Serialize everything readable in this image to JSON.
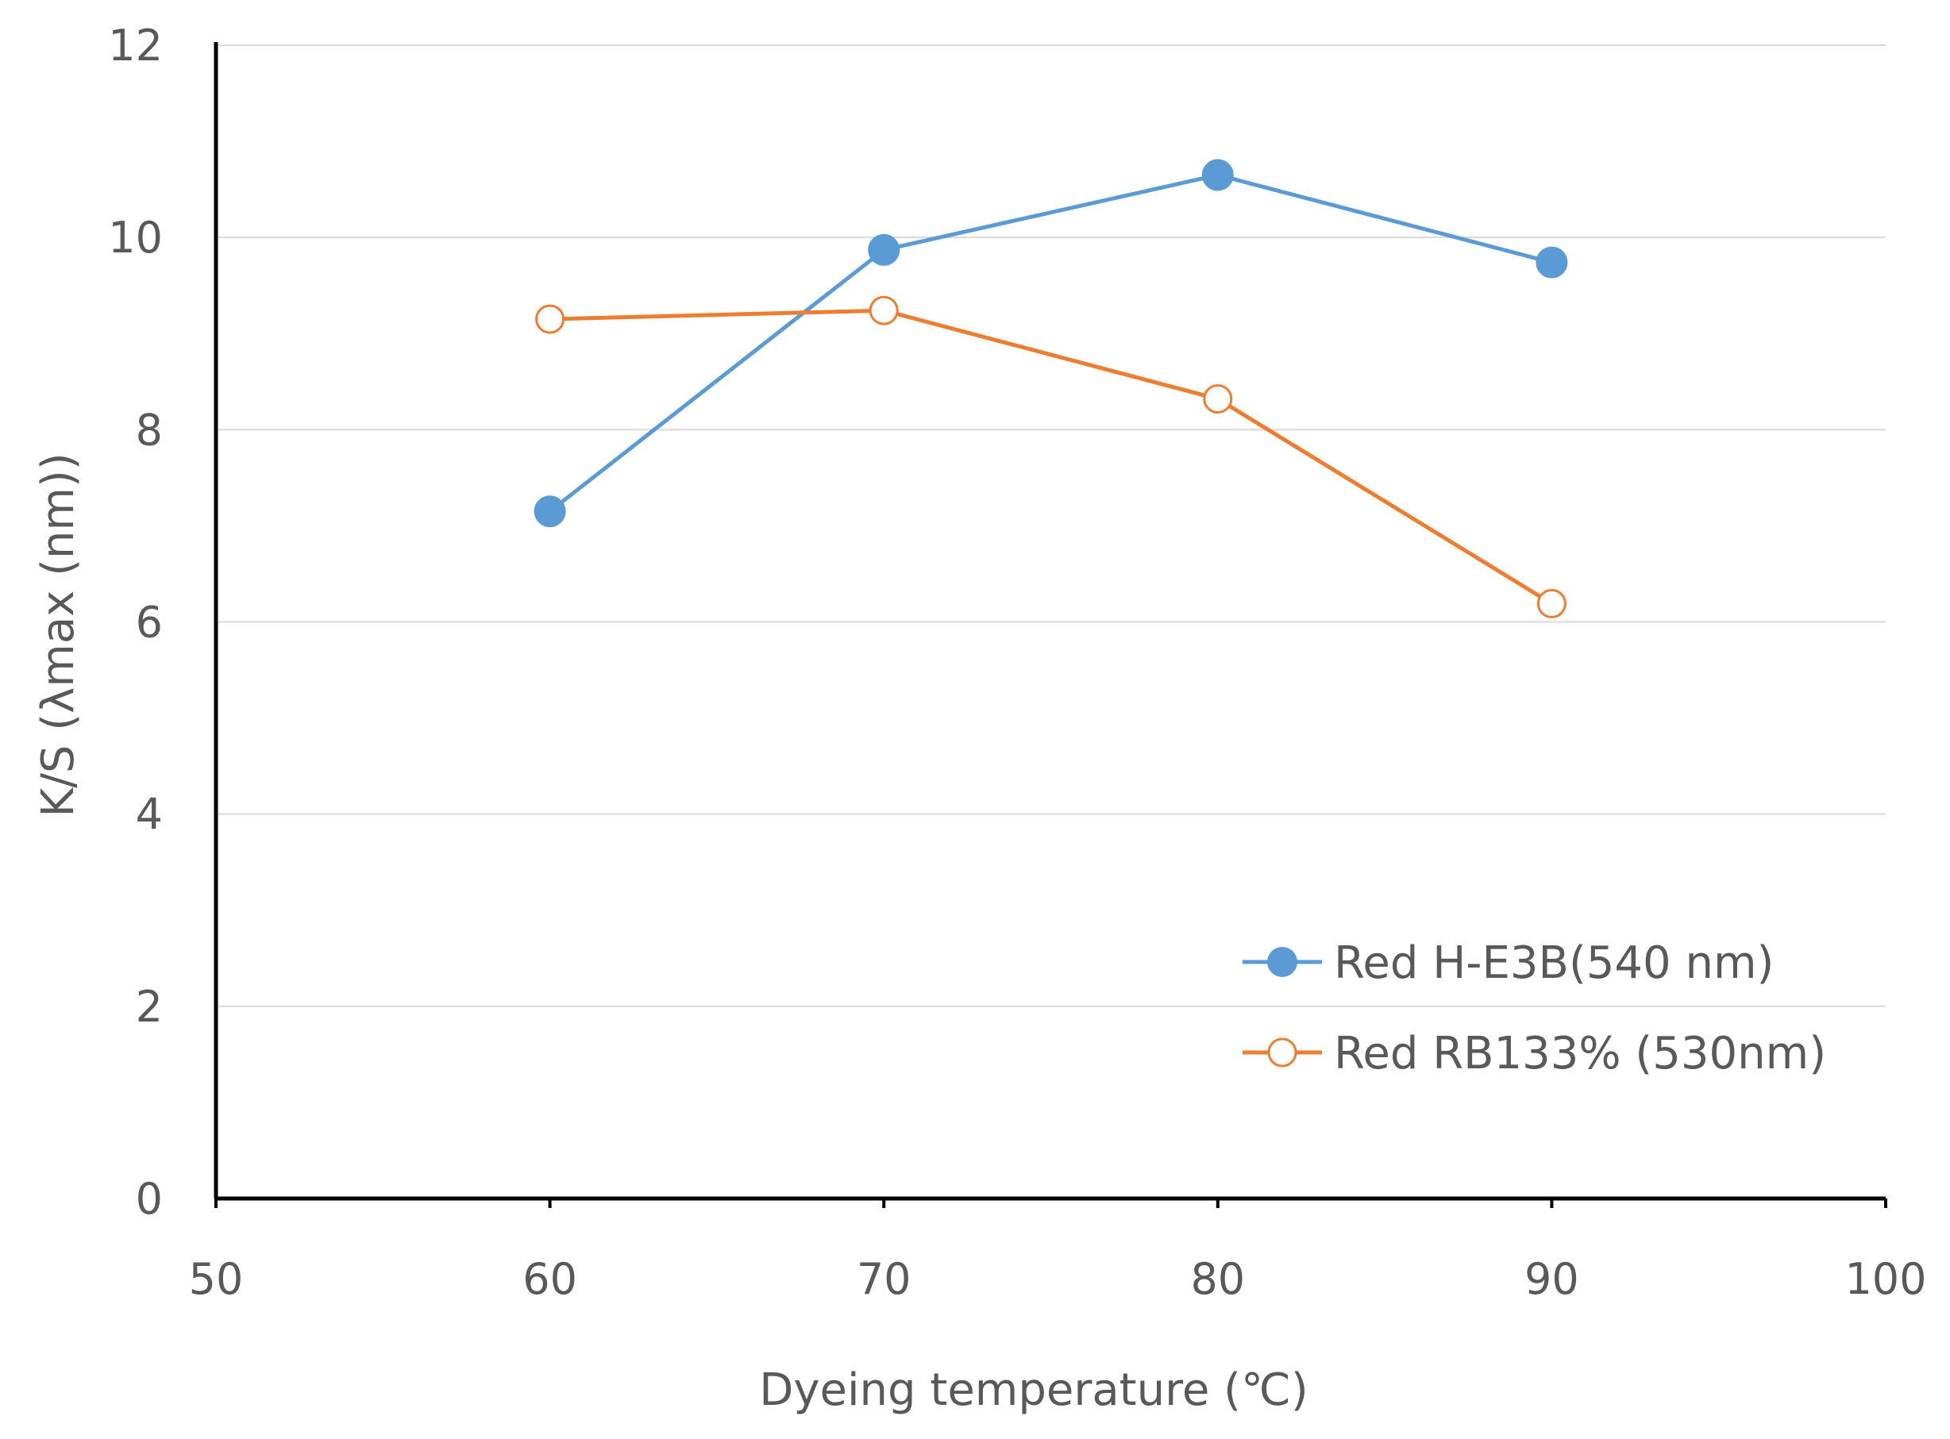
{
  "chart_data": {
    "type": "line",
    "title": "",
    "xlabel": "Dyeing temperature (℃)",
    "ylabel": "K/S (λmax (nm))",
    "xlim": [
      50,
      100
    ],
    "ylim": [
      0,
      12
    ],
    "xticks": [
      50,
      60,
      70,
      80,
      90,
      100
    ],
    "yticks": [
      0,
      2,
      4,
      6,
      8,
      10,
      12
    ],
    "grid": "horizontal",
    "legend_position": "bottom-right",
    "series": [
      {
        "name": "Red H-E3B(540 nm)",
        "color": "#5B9BD5",
        "marker": "filled-circle",
        "x": [
          60,
          70,
          80,
          90
        ],
        "y": [
          7.15,
          9.87,
          10.65,
          9.74
        ]
      },
      {
        "name": "Red RB133% (530nm)",
        "color": "#ED7D31",
        "marker": "open-circle",
        "x": [
          60,
          70,
          80,
          90
        ],
        "y": [
          9.15,
          9.24,
          8.32,
          6.19
        ]
      }
    ]
  }
}
